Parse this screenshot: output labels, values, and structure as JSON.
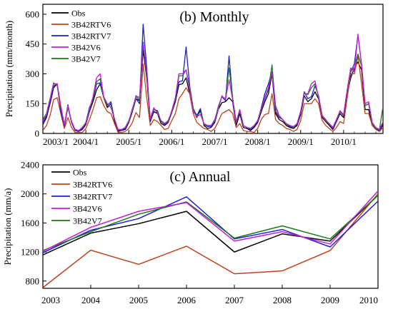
{
  "chart_data": [
    {
      "type": "line",
      "title": "(b) Monthly",
      "xlabel": "",
      "ylabel": "Precipitation (mm/month)",
      "ylim": [
        0,
        650
      ],
      "yticks": [
        0,
        150,
        300,
        450,
        600
      ],
      "xlim": [
        0,
        95
      ],
      "xticks": [
        {
          "i": 0,
          "label": "2003/1"
        },
        {
          "i": 12,
          "label": "2004/1"
        },
        {
          "i": 24,
          "label": "2005/1"
        },
        {
          "i": 36,
          "label": "2006/1"
        },
        {
          "i": 48,
          "label": "2007/1"
        },
        {
          "i": 60,
          "label": "2008/1"
        },
        {
          "i": 72,
          "label": "2009/1"
        },
        {
          "i": 84,
          "label": "2010/1"
        }
      ],
      "legend_position": "top-left",
      "series": [
        {
          "name": "Obs",
          "color": "#000000",
          "values": [
            45,
            80,
            150,
            230,
            250,
            120,
            35,
            135,
            55,
            15,
            10,
            20,
            45,
            110,
            160,
            220,
            250,
            180,
            130,
            150,
            60,
            10,
            15,
            20,
            55,
            110,
            175,
            165,
            420,
            280,
            60,
            110,
            100,
            50,
            40,
            55,
            105,
            160,
            245,
            250,
            280,
            200,
            120,
            80,
            120,
            40,
            25,
            30,
            55,
            120,
            155,
            160,
            180,
            160,
            40,
            100,
            30,
            25,
            15,
            30,
            55,
            110,
            160,
            200,
            300,
            100,
            70,
            60,
            40,
            30,
            25,
            40,
            95,
            190,
            160,
            175,
            210,
            175,
            80,
            60,
            40,
            20,
            60,
            100,
            80,
            200,
            280,
            330,
            360,
            320,
            120,
            120,
            40,
            20,
            10,
            45
          ]
        },
        {
          "name": "3B42RTV6",
          "color": "#c0401a",
          "values": [
            15,
            40,
            90,
            170,
            180,
            100,
            25,
            80,
            30,
            5,
            5,
            5,
            25,
            70,
            120,
            180,
            185,
            140,
            110,
            100,
            50,
            5,
            5,
            10,
            25,
            55,
            105,
            80,
            350,
            180,
            40,
            70,
            60,
            40,
            20,
            25,
            65,
            100,
            175,
            200,
            230,
            200,
            100,
            55,
            40,
            25,
            20,
            10,
            25,
            60,
            100,
            110,
            120,
            100,
            30,
            50,
            15,
            10,
            10,
            5,
            25,
            70,
            95,
            100,
            200,
            70,
            50,
            40,
            25,
            20,
            10,
            20,
            65,
            150,
            150,
            150,
            175,
            150,
            65,
            40,
            25,
            10,
            30,
            60,
            50,
            180,
            300,
            300,
            390,
            250,
            100,
            100,
            40,
            20,
            10,
            30
          ]
        },
        {
          "name": "3B42RTV7",
          "color": "#1f1fd6",
          "values": [
            50,
            90,
            160,
            240,
            250,
            110,
            40,
            145,
            55,
            15,
            10,
            25,
            55,
            130,
            170,
            250,
            255,
            185,
            140,
            160,
            70,
            15,
            15,
            25,
            60,
            125,
            175,
            150,
            550,
            330,
            60,
            120,
            115,
            60,
            45,
            60,
            110,
            170,
            260,
            265,
            435,
            240,
            125,
            90,
            125,
            45,
            35,
            35,
            60,
            135,
            185,
            165,
            390,
            175,
            50,
            115,
            40,
            30,
            20,
            35,
            60,
            130,
            200,
            250,
            310,
            110,
            80,
            70,
            45,
            35,
            30,
            45,
            105,
            210,
            175,
            185,
            240,
            190,
            90,
            70,
            45,
            25,
            65,
            110,
            90,
            215,
            310,
            350,
            495,
            350,
            140,
            150,
            50,
            25,
            15,
            55
          ]
        },
        {
          "name": "3B42V6",
          "color": "#c21fd6",
          "values": [
            60,
            95,
            170,
            250,
            250,
            140,
            45,
            140,
            60,
            20,
            15,
            30,
            50,
            120,
            185,
            280,
            300,
            185,
            150,
            130,
            75,
            20,
            20,
            30,
            60,
            120,
            190,
            180,
            450,
            300,
            75,
            130,
            100,
            65,
            50,
            60,
            115,
            180,
            300,
            300,
            320,
            220,
            110,
            85,
            95,
            50,
            40,
            40,
            65,
            120,
            190,
            170,
            270,
            170,
            60,
            120,
            40,
            30,
            25,
            40,
            65,
            120,
            180,
            230,
            305,
            140,
            90,
            70,
            50,
            40,
            35,
            50,
            110,
            200,
            200,
            250,
            265,
            180,
            90,
            65,
            50,
            30,
            70,
            115,
            95,
            220,
            330,
            310,
            500,
            350,
            150,
            160,
            55,
            30,
            20,
            60
          ]
        },
        {
          "name": "3B42V7",
          "color": "#1a7a1a",
          "values": [
            70,
            100,
            175,
            255,
            240,
            130,
            45,
            130,
            60,
            20,
            15,
            30,
            55,
            120,
            175,
            260,
            275,
            180,
            140,
            145,
            70,
            20,
            20,
            30,
            65,
            115,
            185,
            170,
            460,
            300,
            70,
            125,
            110,
            60,
            50,
            65,
            110,
            175,
            290,
            290,
            320,
            230,
            120,
            85,
            110,
            45,
            40,
            40,
            70,
            130,
            185,
            175,
            330,
            180,
            55,
            120,
            40,
            30,
            25,
            40,
            65,
            125,
            175,
            220,
            345,
            130,
            85,
            70,
            45,
            40,
            30,
            50,
            110,
            205,
            195,
            230,
            250,
            185,
            90,
            70,
            45,
            30,
            70,
            110,
            95,
            215,
            320,
            330,
            400,
            340,
            140,
            150,
            50,
            25,
            20,
            135
          ]
        }
      ]
    },
    {
      "type": "line",
      "title": "(c) Annual",
      "xlabel": "",
      "ylabel": "Precipitation (mm/a)",
      "ylim": [
        700,
        2400
      ],
      "yticks": [
        800,
        1200,
        1600,
        2000,
        2400
      ],
      "x": [
        2003,
        2004,
        2005,
        2006,
        2007,
        2008,
        2009,
        2010
      ],
      "legend_position": "top-left",
      "series": [
        {
          "name": "Obs",
          "color": "#000000",
          "values": [
            1160,
            1460,
            1590,
            1760,
            1200,
            1450,
            1350,
            1980
          ]
        },
        {
          "name": "3B42RTV6",
          "color": "#c0401a",
          "values": [
            710,
            1225,
            1030,
            1280,
            900,
            940,
            1220,
            2000
          ]
        },
        {
          "name": "3B42RTV7",
          "color": "#1f1fd6",
          "values": [
            1190,
            1500,
            1660,
            1960,
            1380,
            1510,
            1270,
            1900
          ]
        },
        {
          "name": "3B42V6",
          "color": "#c21fd6",
          "values": [
            1210,
            1540,
            1760,
            1880,
            1350,
            1480,
            1310,
            2040
          ]
        },
        {
          "name": "3B42V7",
          "color": "#1a7a1a",
          "values": [
            1220,
            1480,
            1720,
            1890,
            1390,
            1560,
            1380,
            1980
          ]
        }
      ]
    }
  ]
}
